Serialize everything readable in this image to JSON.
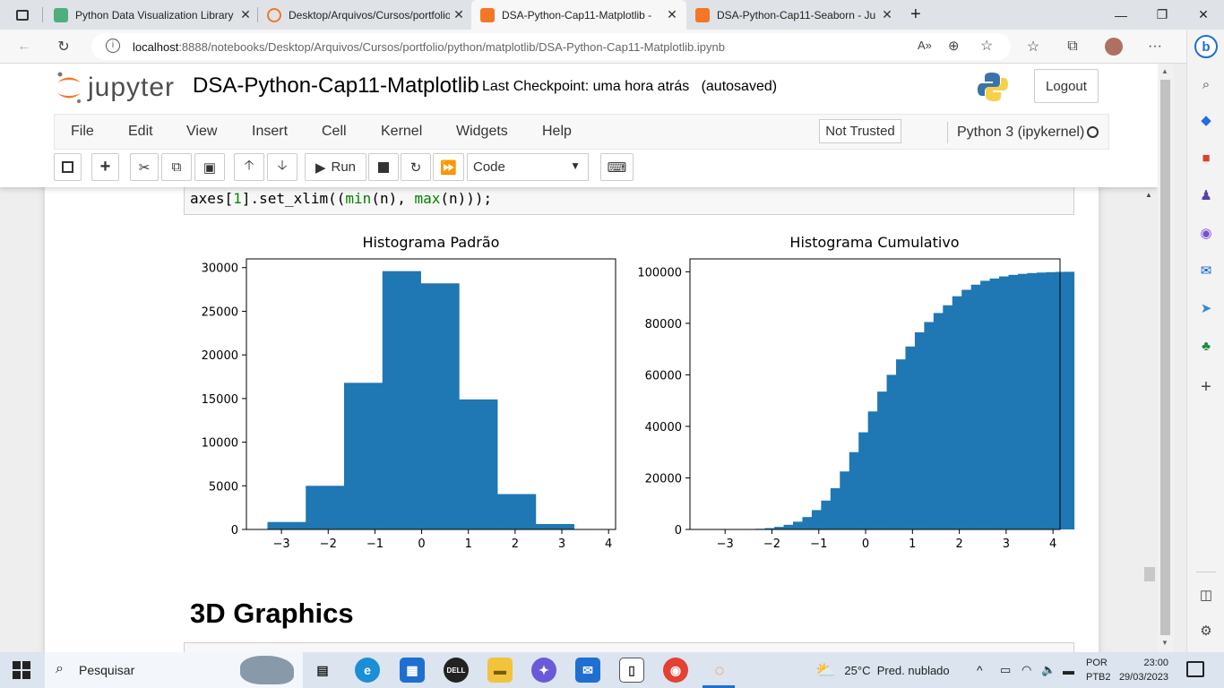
{
  "browser": {
    "tabs": [
      {
        "title": "Python Data Visualization Library",
        "favicon_color": "#4caf7d"
      },
      {
        "title": "Desktop/Arquivos/Cursos/portfolio",
        "favicon_color": "#f37726"
      },
      {
        "title": "DSA-Python-Cap11-Matplotlib - ",
        "favicon_color": "#f37726"
      },
      {
        "title": "DSA-Python-Cap11-Seaborn - Ju",
        "favicon_color": "#f37726"
      }
    ],
    "active_tab": 2,
    "close_glyph": "✕",
    "new_tab_glyph": "+",
    "url_host": "localhost",
    "url_rest": ":8888/notebooks/Desktop/Arquivos/Cursos/portfolio/python/matplotlib/DSA-Python-Cap11-Matplotlib.ipynb",
    "window_controls": [
      "—",
      "❐",
      "✕"
    ]
  },
  "jupyter": {
    "wordmark": "jupyter",
    "notebook_title": "DSA-Python-Cap11-Matplotlib",
    "checkpoint": "Last Checkpoint: uma hora atrás   (autosaved)",
    "logout_label": "Logout",
    "menu": [
      "File",
      "Edit",
      "View",
      "Insert",
      "Cell",
      "Kernel",
      "Widgets",
      "Help"
    ],
    "not_trusted_label": "Not Trusted",
    "kernel_name": "Python 3 (ipykernel)",
    "run_label": "Run",
    "cell_type": "Code"
  },
  "code": {
    "line_prefix": "axes[",
    "line_idx": "1",
    "line_mid": "].set_xlim((",
    "fn_min": "min",
    "arg1": "(n), ",
    "fn_max": "max",
    "arg2": "(n)));"
  },
  "chart_data": [
    {
      "type": "bar",
      "title": "Histograma Padrão",
      "bin_edges": [
        -3.3,
        -2.48,
        -1.66,
        -0.84,
        -0.02,
        0.8,
        1.62,
        2.44,
        3.26
      ],
      "values": [
        850,
        5000,
        16800,
        29600,
        28200,
        14900,
        4050,
        620
      ],
      "xlim": [
        -3.75,
        4.15
      ],
      "ylim": [
        0,
        31000
      ],
      "xticks": [
        -3,
        -2,
        -1,
        0,
        1,
        2,
        3,
        4
      ],
      "xtick_labels": [
        "−3",
        "−2",
        "−1",
        "0",
        "1",
        "2",
        "3",
        "4"
      ],
      "yticks": [
        0,
        5000,
        10000,
        15000,
        20000,
        25000,
        30000
      ],
      "ytick_labels": [
        "0",
        "5000",
        "10000",
        "15000",
        "20000",
        "25000",
        "30000"
      ],
      "color": "#1f77b4",
      "grid": false
    },
    {
      "type": "bar",
      "title": "Histograma Cumulativo",
      "bin_start": -3.75,
      "bin_width": 0.2,
      "values": [
        0,
        0,
        0,
        0,
        0,
        20,
        80,
        250,
        500,
        1000,
        1800,
        3000,
        4800,
        7500,
        11200,
        16000,
        22500,
        30000,
        37700,
        45800,
        53500,
        60000,
        66000,
        71000,
        76500,
        80500,
        84000,
        87000,
        90500,
        93000,
        95000,
        96500,
        97400,
        98200,
        98800,
        99200,
        99500,
        99700,
        99850,
        99950,
        100000
      ],
      "xlim": [
        -3.75,
        4.15
      ],
      "ylim": [
        0,
        105000
      ],
      "xticks": [
        -3,
        -2,
        -1,
        0,
        1,
        2,
        3,
        4
      ],
      "xtick_labels": [
        "−3",
        "−2",
        "−1",
        "0",
        "1",
        "2",
        "3",
        "4"
      ],
      "yticks": [
        0,
        20000,
        40000,
        60000,
        80000,
        100000
      ],
      "ytick_labels": [
        "0",
        "20000",
        "40000",
        "60000",
        "80000",
        "100000"
      ],
      "color": "#1f77b4",
      "grid": false
    }
  ],
  "markdown": {
    "heading": "3D Graphics"
  },
  "taskbar": {
    "search_placeholder": "Pesquisar",
    "weather": "25°C  Pred. nublado",
    "lang_top": "POR",
    "lang_bottom": "PTB2",
    "time": "23:00",
    "date": "29/03/2023"
  }
}
